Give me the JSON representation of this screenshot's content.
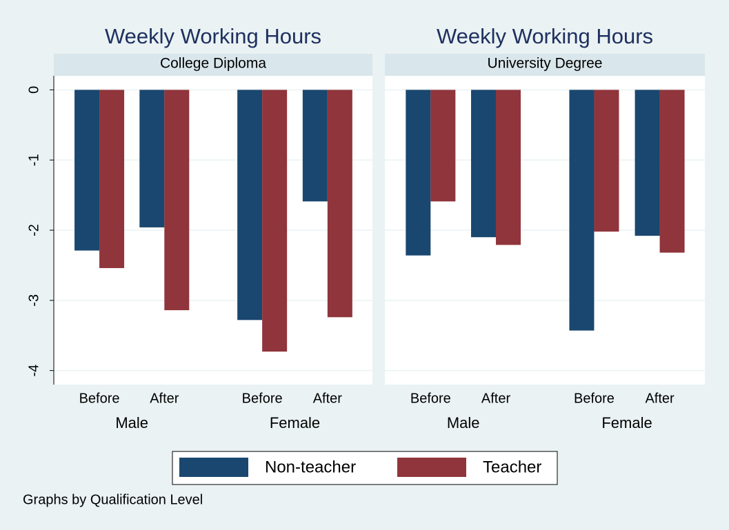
{
  "chart_data": [
    {
      "type": "bar",
      "title": "Weekly Working Hours",
      "subtitle": "College Diploma",
      "categories": [
        "Before",
        "After",
        "Before",
        "After"
      ],
      "groups": [
        "Male",
        "Female"
      ],
      "series": [
        {
          "name": "Non-teacher",
          "color": "#1a476f",
          "values": [
            -2.29,
            -1.96,
            -3.28,
            -1.59
          ]
        },
        {
          "name": "Teacher",
          "color": "#90353b",
          "values": [
            -2.54,
            -3.14,
            -3.73,
            -3.24
          ]
        }
      ],
      "ylim": [
        -4.2,
        0.2
      ],
      "yticks": [
        0,
        -1,
        -2,
        -3,
        -4
      ],
      "grid": true
    },
    {
      "type": "bar",
      "title": "Weekly Working Hours",
      "subtitle": "University Degree",
      "categories": [
        "Before",
        "After",
        "Before",
        "After"
      ],
      "groups": [
        "Male",
        "Female"
      ],
      "series": [
        {
          "values": [
            -2.36,
            -2.1,
            -3.43,
            -2.08
          ]
        },
        {
          "values": [
            -1.59,
            -2.21,
            -2.02,
            -2.32
          ]
        }
      ],
      "ylim": [
        -4.2,
        0.2
      ],
      "yticks": [
        0,
        -1,
        -2,
        -3,
        -4
      ],
      "grid": true
    }
  ],
  "note": "Graphs by Qualification Level"
}
